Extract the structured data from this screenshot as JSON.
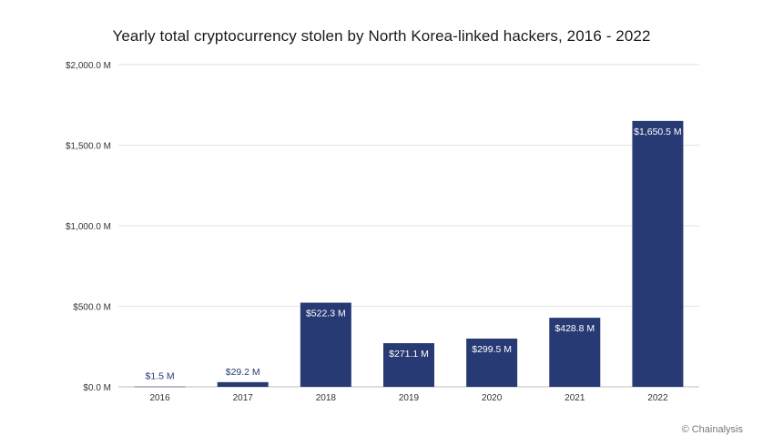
{
  "chart_data": {
    "type": "bar",
    "title": "Yearly total cryptocurrency stolen by North Korea-linked hackers, 2016 - 2022",
    "categories": [
      "2016",
      "2017",
      "2018",
      "2019",
      "2020",
      "2021",
      "2022"
    ],
    "values": [
      1.5,
      29.2,
      522.3,
      271.1,
      299.5,
      428.8,
      1650.5
    ],
    "value_labels": [
      "$1.5 M",
      "$29.2 M",
      "$522.3 M",
      "$271.1 M",
      "$299.5 M",
      "$428.8 M",
      "$1,650.5 M"
    ],
    "ylim": [
      0,
      2000
    ],
    "yticks": [
      0,
      500,
      1000,
      1500,
      2000
    ],
    "ytick_labels": [
      "$0.0 M",
      "$500.0 M",
      "$1,000.0 M",
      "$1,500.0 M",
      "$2,000.0 M"
    ],
    "xlabel": "",
    "ylabel": "",
    "grid": true,
    "legend": "none",
    "bar_color": "#283a74",
    "label_color_inside": "#ffffff",
    "label_color_outside": "#283a74"
  },
  "credit": "© Chainalysis"
}
